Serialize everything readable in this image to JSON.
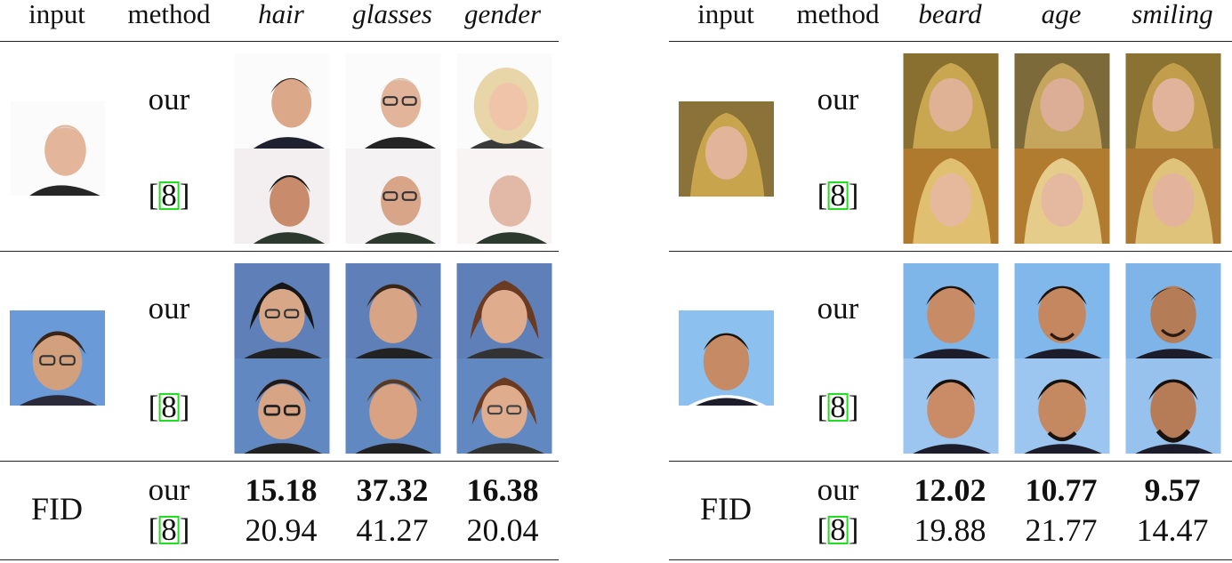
{
  "panels": [
    {
      "headers": {
        "input": "input",
        "method": "method",
        "attrs": [
          "hair",
          "glasses",
          "gender"
        ]
      },
      "rows": [
        {
          "methods": [
            "our",
            "[8]"
          ]
        },
        {
          "methods": [
            "our",
            "[8]"
          ]
        }
      ],
      "fid": {
        "label": "FID",
        "methods": [
          "our",
          "[8]"
        ],
        "our": [
          "15.18",
          "37.32",
          "16.38"
        ],
        "ref": [
          "20.94",
          "41.27",
          "20.04"
        ]
      }
    },
    {
      "headers": {
        "input": "input",
        "method": "method",
        "attrs": [
          "beard",
          "age",
          "smiling"
        ]
      },
      "rows": [
        {
          "methods": [
            "our",
            "[8]"
          ]
        },
        {
          "methods": [
            "our",
            "[8]"
          ]
        }
      ],
      "fid": {
        "label": "FID",
        "methods": [
          "our",
          "[8]"
        ],
        "our": [
          "12.02",
          "10.77",
          "9.57"
        ],
        "ref": [
          "19.88",
          "21.77",
          "14.47"
        ]
      }
    }
  ],
  "colors": {
    "citation_box": "#22dd22",
    "rule": "#222222"
  }
}
